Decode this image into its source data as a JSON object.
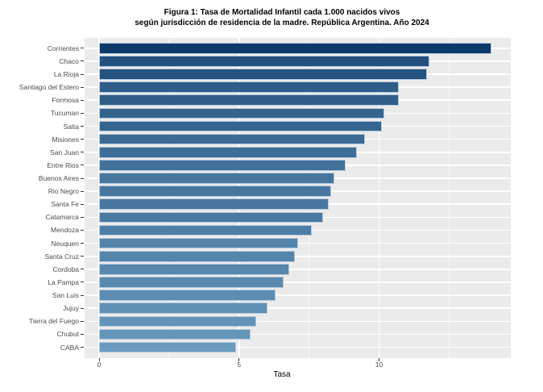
{
  "title": {
    "line1": "Figura 1: Tasa de Mortalidad Infantil cada 1.000 nacidos vivos",
    "line2": "según jurisdicción de residencia de la madre. República Argentina. Año 2024"
  },
  "chart_data": {
    "type": "bar",
    "orientation": "horizontal",
    "title": "Figura 1: Tasa de Mortalidad Infantil cada 1.000 nacidos vivos según jurisdicción de residencia de la madre. República Argentina. Año 2024",
    "xlabel": "Tasa",
    "ylabel": "",
    "categories": [
      "Corrientes",
      "Chaco",
      "La Rioja",
      "Santiago del Estero",
      "Formosa",
      "Tucuman",
      "Salta",
      "Misiones",
      "San Juan",
      "Entre Rios",
      "Buenos Aires",
      "Rio Negro",
      "Santa Fe",
      "Catamarca",
      "Mendoza",
      "Neuquen",
      "Santa Cruz",
      "Cordoba",
      "La Pampa",
      "San Luis",
      "Jujuy",
      "Tierra del Fuego",
      "Chubut",
      "CABA"
    ],
    "values": [
      14.0,
      11.8,
      11.7,
      10.7,
      10.7,
      10.2,
      10.1,
      9.5,
      9.2,
      8.8,
      8.4,
      8.3,
      8.2,
      8.0,
      7.6,
      7.1,
      7.0,
      6.8,
      6.6,
      6.3,
      6.0,
      5.6,
      5.4,
      4.9
    ],
    "x_ticks": [
      0,
      5,
      10
    ],
    "x_minor_ticks": [
      2.5,
      7.5,
      12.5
    ],
    "xlim": [
      0,
      14.7
    ],
    "grid": true,
    "legend_position": "none",
    "sorted": "descending",
    "color_domain": [
      4.9,
      14.0
    ],
    "colors": {
      "bar_high": "#0D3A6B",
      "bar_low": "#6A9BBE",
      "bar_border": "#B5C9DE",
      "panel_background": "#EBEBEB",
      "gridline": "#FFFFFF",
      "axis_text": "#4D4D4D",
      "title_text": "#000000"
    }
  }
}
